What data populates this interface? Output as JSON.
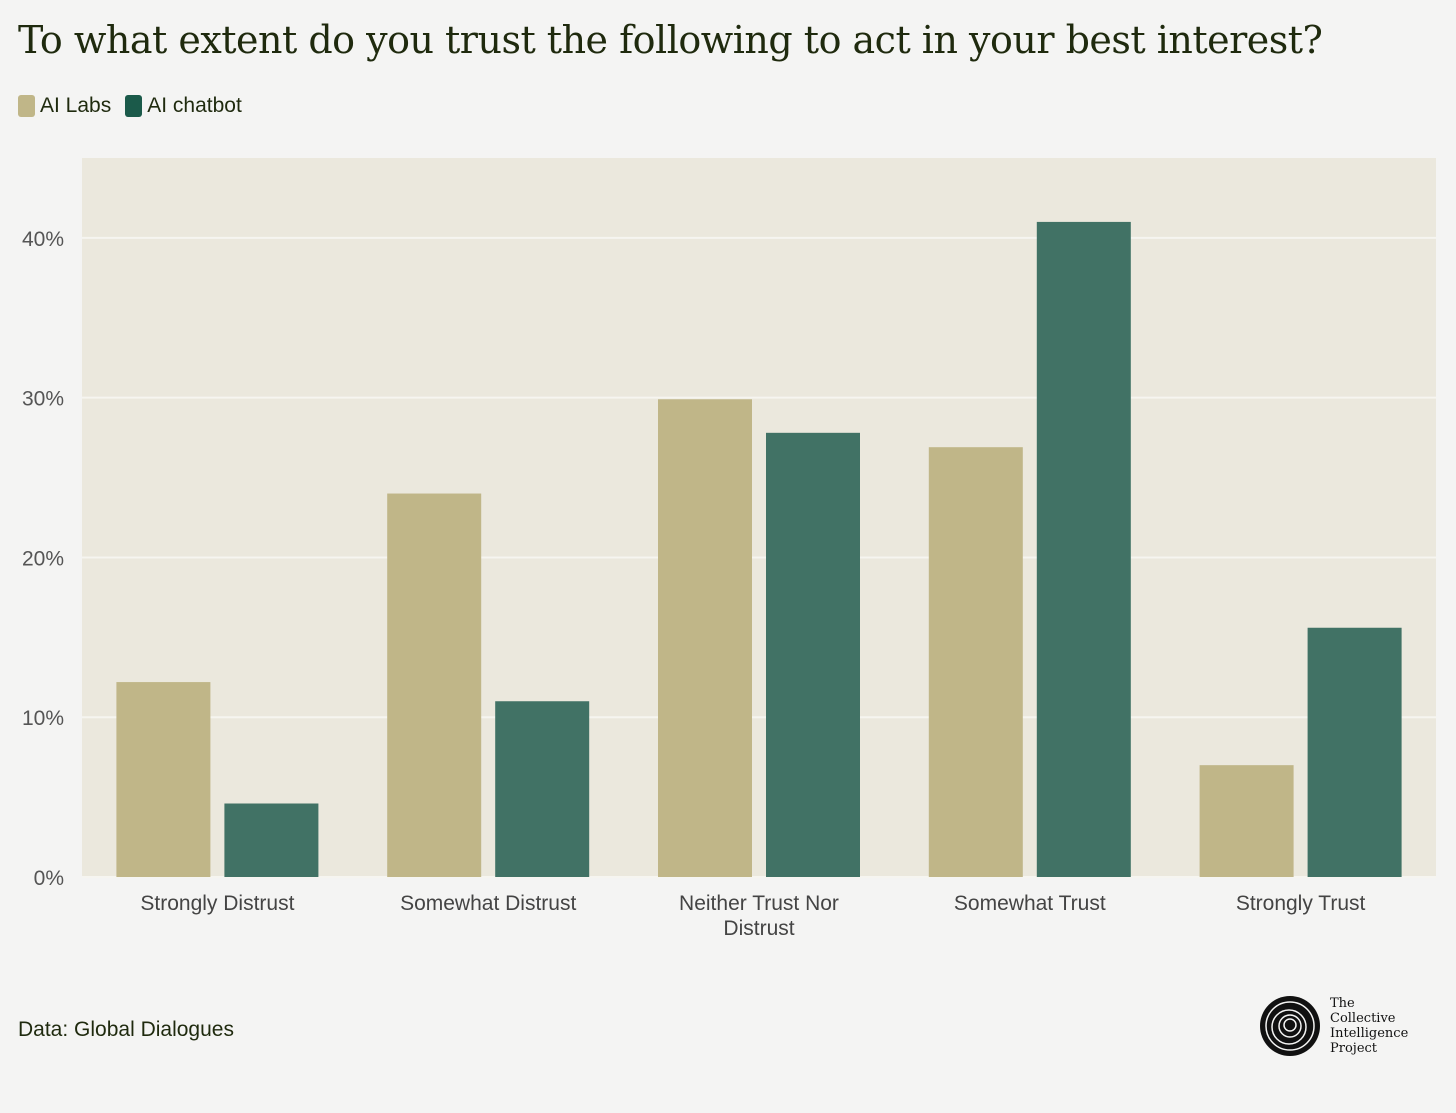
{
  "title": "To what extent do you trust the following to act in your best interest?",
  "legend": [
    {
      "label": "AI Labs",
      "color": "#c0b688"
    },
    {
      "label": "AI chatbot",
      "color": "#1b5a4a"
    }
  ],
  "source": "Data: Global Dialogues",
  "brand": {
    "logo_icon": "tree-rings-logo-icon",
    "lines": [
      "The",
      "Collective",
      "Intelligence",
      "Project"
    ]
  },
  "colors": {
    "plot_background": "#ebe8dd",
    "page_background": "#f4f4f3",
    "ai_labs": "#c0b688",
    "ai_chatbot": "#417265"
  },
  "chart_data": {
    "type": "bar",
    "title": "To what extent do you trust the following to act in your best interest?",
    "xlabel": "",
    "ylabel": "",
    "categories": [
      [
        "Strongly Distrust"
      ],
      [
        "Somewhat Distrust"
      ],
      [
        "Neither Trust Nor",
        "Distrust"
      ],
      [
        "Somewhat Trust"
      ],
      [
        "Strongly Trust"
      ]
    ],
    "series": [
      {
        "name": "AI Labs",
        "values": [
          12.2,
          24.0,
          29.9,
          26.9,
          7.0
        ]
      },
      {
        "name": "AI chatbot",
        "values": [
          4.6,
          11.0,
          27.8,
          41.0,
          15.6
        ]
      }
    ],
    "ylim": [
      0,
      45
    ],
    "yticks": [
      0,
      10,
      20,
      30,
      40
    ],
    "ytick_labels": [
      "0%",
      "10%",
      "20%",
      "30%",
      "40%"
    ],
    "grid": true,
    "legend_position": "top-left"
  }
}
